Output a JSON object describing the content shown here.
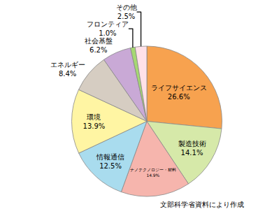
{
  "chart_data": {
    "type": "pie",
    "categories": [
      "ライフサイエンス",
      "製造技術",
      "ナノテクノロジー・材料",
      "情報通信",
      "環境",
      "エネルギー",
      "社会基盤",
      "フロンティア",
      "その他"
    ],
    "values": [
      26.6,
      14.1,
      14.9,
      12.5,
      13.9,
      8.4,
      6.2,
      1.0,
      2.5
    ],
    "value_labels": [
      "26.6%",
      "14.1%",
      "14.9%",
      "12.5%",
      "13.9%",
      "8.4%",
      "6.2%",
      "1.0%",
      "2.5%"
    ],
    "colors": [
      "#f7a24f",
      "#d6e9a9",
      "#f6b5ad",
      "#a9dcee",
      "#fff5a3",
      "#d6cdc2",
      "#c9a9d6",
      "#a6d872",
      "#ffe1e9"
    ],
    "data_labels": true,
    "note": "文部科学省資料により作成"
  }
}
